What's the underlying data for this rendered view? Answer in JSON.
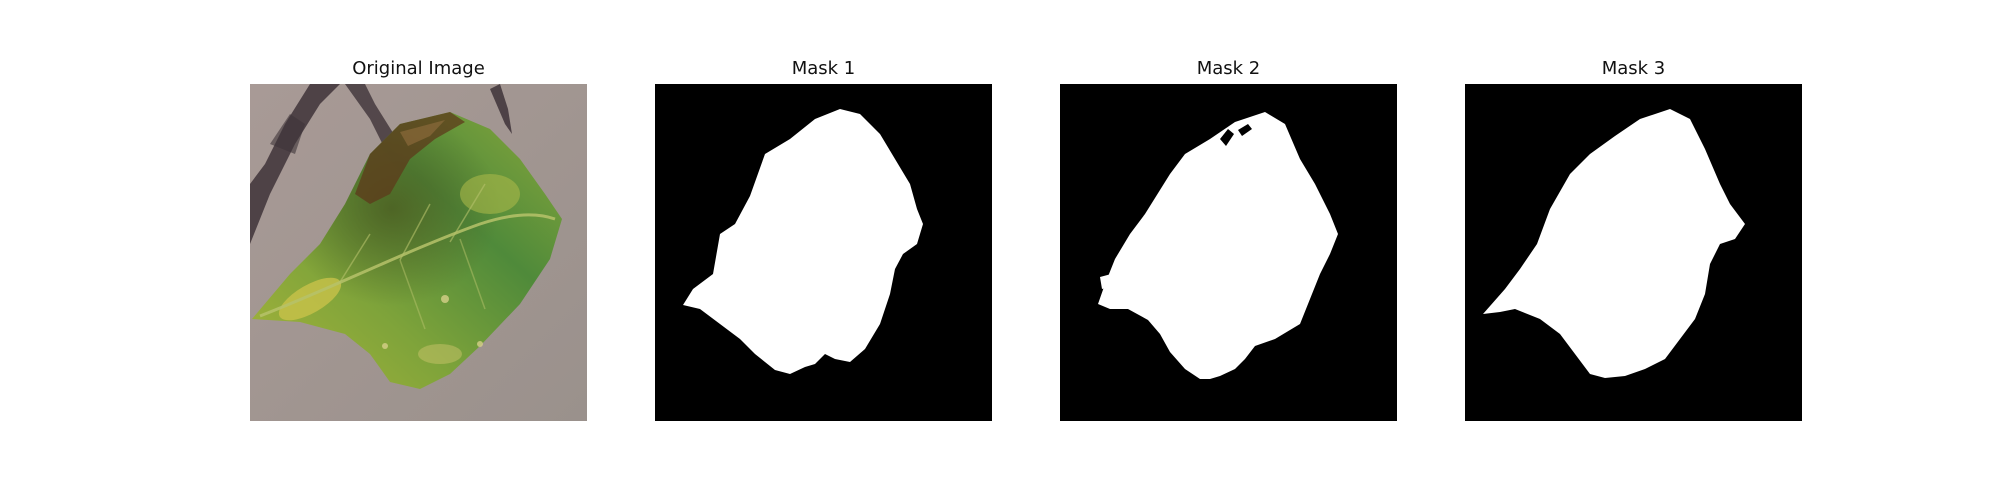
{
  "figure": {
    "panels": [
      {
        "title": "Original Image",
        "content": "leaf-photo"
      },
      {
        "title": "Mask 1",
        "content": "segmentation-mask"
      },
      {
        "title": "Mask 2",
        "content": "segmentation-mask"
      },
      {
        "title": "Mask 3",
        "content": "segmentation-mask"
      }
    ]
  },
  "colors": {
    "mask_background": "#000000",
    "mask_foreground": "#ffffff",
    "photo_background": "#a39a95",
    "leaf_green": "#5f8f2e",
    "leaf_yellow": "#b8b43a",
    "leaf_brown": "#5a3a1a",
    "shadow": "#3a3035"
  }
}
